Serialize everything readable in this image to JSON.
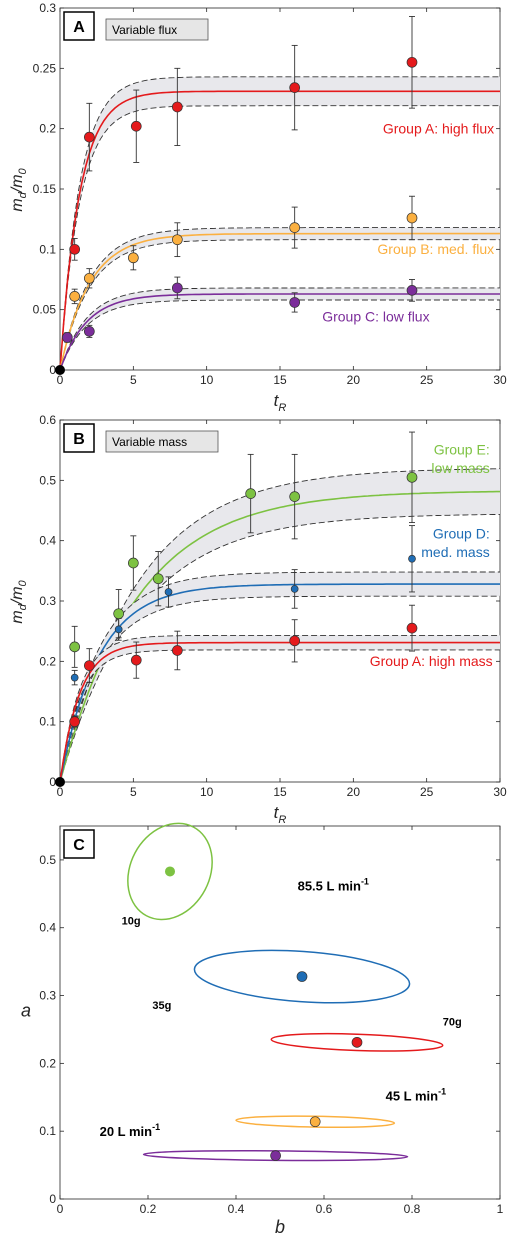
{
  "chart_data": [
    {
      "type": "line",
      "panel_label": "A",
      "title": "Variable flux",
      "xlabel_main": "t",
      "xlabel_sub": "R",
      "ylabel_main": "m",
      "ylabel_sub1": "d",
      "ylabel_mid": "/m",
      "ylabel_sub2": "0",
      "xlim": [
        0,
        30
      ],
      "ylim": [
        0,
        0.3
      ],
      "xticks": [
        0,
        5,
        10,
        15,
        20,
        25,
        30
      ],
      "xtick_labels": [
        "0",
        "5",
        "10",
        "15",
        "20",
        "25",
        "30"
      ],
      "yticks": [
        0,
        0.05,
        0.1,
        0.15,
        0.2,
        0.25,
        0.3
      ],
      "ytick_labels": [
        "0",
        "0.05",
        "0.1",
        "0.15",
        "0.2",
        "0.25",
        "0.3"
      ],
      "grid": false,
      "origin_point": [
        0,
        0
      ],
      "series": [
        {
          "name": "Group A: high flux",
          "color": "#e41a1c",
          "fit": {
            "plateau": 0.231,
            "rate": 0.75,
            "band": 0.012
          },
          "points": [
            {
              "x": 1,
              "y": 0.1,
              "err": 0.009
            },
            {
              "x": 2,
              "y": 0.193,
              "err": 0.028
            },
            {
              "x": 5.2,
              "y": 0.202,
              "err": 0.03
            },
            {
              "x": 8,
              "y": 0.218,
              "err": 0.032
            },
            {
              "x": 16,
              "y": 0.234,
              "err": 0.035
            },
            {
              "x": 24,
              "y": 0.255,
              "err": 0.038
            }
          ]
        },
        {
          "name": "Group B: med. flux",
          "color": "#fbb040",
          "fit": {
            "plateau": 0.113,
            "rate": 0.5,
            "band": 0.005
          },
          "points": [
            {
              "x": 1,
              "y": 0.061,
              "err": 0.006
            },
            {
              "x": 2,
              "y": 0.076,
              "err": 0.008
            },
            {
              "x": 5,
              "y": 0.093,
              "err": 0.01
            },
            {
              "x": 8,
              "y": 0.108,
              "err": 0.014
            },
            {
              "x": 16,
              "y": 0.118,
              "err": 0.017
            },
            {
              "x": 24,
              "y": 0.126,
              "err": 0.018
            }
          ]
        },
        {
          "name": "Group C: low flux",
          "color": "#7b2d9a",
          "fit": {
            "plateau": 0.063,
            "rate": 0.55,
            "band": 0.005
          },
          "points": [
            {
              "x": 0.5,
              "y": 0.027,
              "err": 0.004
            },
            {
              "x": 2,
              "y": 0.032,
              "err": 0.005
            },
            {
              "x": 8,
              "y": 0.068,
              "err": 0.009
            },
            {
              "x": 16,
              "y": 0.056,
              "err": 0.008
            },
            {
              "x": 24,
              "y": 0.066,
              "err": 0.009
            }
          ]
        }
      ],
      "annotations": [
        {
          "text": "Group A: high flux",
          "x": 29.6,
          "y": 0.196,
          "color": "#e41a1c"
        },
        {
          "text": "Group B: med. flux",
          "x": 29.6,
          "y": 0.096,
          "color": "#fbb040"
        },
        {
          "text": "Group C: low flux",
          "x": 25.2,
          "y": 0.04,
          "color": "#7b2d9a"
        }
      ]
    },
    {
      "type": "line",
      "panel_label": "B",
      "title": "Variable mass",
      "xlabel_main": "t",
      "xlabel_sub": "R",
      "ylabel_main": "m",
      "ylabel_sub1": "d",
      "ylabel_mid": "/m",
      "ylabel_sub2": "0",
      "xlim": [
        0,
        30
      ],
      "ylim": [
        0,
        0.6
      ],
      "xticks": [
        0,
        5,
        10,
        15,
        20,
        25,
        30
      ],
      "xtick_labels": [
        "0",
        "5",
        "10",
        "15",
        "20",
        "25",
        "30"
      ],
      "yticks": [
        0,
        0.1,
        0.2,
        0.3,
        0.4,
        0.5,
        0.6
      ],
      "ytick_labels": [
        "0",
        "0.1",
        "0.2",
        "0.3",
        "0.4",
        "0.5",
        "0.6"
      ],
      "grid": false,
      "origin_point": [
        0,
        0
      ],
      "series": [
        {
          "name": "Group E: low mass",
          "color": "#7dc242",
          "fit": {
            "plateau": 0.483,
            "rate": 0.19,
            "band": 0.038
          },
          "points": [
            {
              "x": 1,
              "y": 0.224,
              "err": 0.034
            },
            {
              "x": 4,
              "y": 0.279,
              "err": 0.04
            },
            {
              "x": 5,
              "y": 0.363,
              "err": 0.045
            },
            {
              "x": 6.7,
              "y": 0.337,
              "err": 0.045
            },
            {
              "x": 13,
              "y": 0.478,
              "err": 0.065
            },
            {
              "x": 16,
              "y": 0.473,
              "err": 0.07
            },
            {
              "x": 24,
              "y": 0.505,
              "err": 0.075
            }
          ]
        },
        {
          "name": "Group D: med. mass",
          "color": "#1f6db5",
          "fit": {
            "plateau": 0.328,
            "rate": 0.38,
            "band": 0.02
          },
          "points": [
            {
              "x": 1,
              "y": 0.173,
              "err": 0.012
            },
            {
              "x": 4,
              "y": 0.253,
              "err": 0.018
            },
            {
              "x": 7.4,
              "y": 0.315,
              "err": 0.025
            },
            {
              "x": 16,
              "y": 0.32,
              "err": 0.032
            },
            {
              "x": 24,
              "y": 0.37,
              "err": 0.055
            }
          ]
        },
        {
          "name": "Group A: high mass",
          "color": "#e41a1c",
          "fit": {
            "plateau": 0.231,
            "rate": 0.75,
            "band": 0.012
          },
          "points": [
            {
              "x": 1,
              "y": 0.1,
              "err": 0.009
            },
            {
              "x": 2,
              "y": 0.193,
              "err": 0.028
            },
            {
              "x": 5.2,
              "y": 0.202,
              "err": 0.03
            },
            {
              "x": 8,
              "y": 0.218,
              "err": 0.032
            },
            {
              "x": 16,
              "y": 0.234,
              "err": 0.035
            },
            {
              "x": 24,
              "y": 0.255,
              "err": 0.038
            }
          ]
        }
      ],
      "annotations": [
        {
          "text": "Group E:",
          "x": 29.3,
          "y": 0.543,
          "color": "#7dc242"
        },
        {
          "text": "low mass",
          "x": 29.3,
          "y": 0.512,
          "color": "#7dc242"
        },
        {
          "text": "Group D:",
          "x": 29.3,
          "y": 0.404,
          "color": "#1f6db5"
        },
        {
          "text": "med. mass",
          "x": 29.3,
          "y": 0.373,
          "color": "#1f6db5"
        },
        {
          "text": "Group A: high mass",
          "x": 29.5,
          "y": 0.192,
          "color": "#e41a1c"
        }
      ]
    },
    {
      "type": "scatter",
      "panel_label": "C",
      "xlabel": "b",
      "ylabel": "a",
      "xlim": [
        0,
        1
      ],
      "ylim": [
        0,
        0.55
      ],
      "xticks": [
        0,
        0.2,
        0.4,
        0.6,
        0.8,
        1
      ],
      "xtick_labels": [
        "0",
        "0.2",
        "0.4",
        "0.6",
        "0.8",
        "1"
      ],
      "yticks": [
        0,
        0.1,
        0.2,
        0.3,
        0.4,
        0.5
      ],
      "ytick_labels": [
        "0",
        "0.1",
        "0.2",
        "0.3",
        "0.4",
        "0.5"
      ],
      "grid": false,
      "series": [
        {
          "name": "10g",
          "color": "#7dc242",
          "b": 0.25,
          "a": 0.483,
          "ellipse": {
            "b_halfwidth": 0.09,
            "a_halfwidth": 0.074
          }
        },
        {
          "name": "35g",
          "color": "#1f6db5",
          "b": 0.55,
          "a": 0.328,
          "ellipse": {
            "b_halfwidth": 0.245,
            "a_halfwidth": 0.037
          }
        },
        {
          "name": "70g",
          "color": "#e41a1c",
          "b": 0.675,
          "a": 0.231,
          "ellipse": {
            "b_halfwidth": 0.195,
            "a_halfwidth": 0.012
          }
        },
        {
          "name": "45 L min-1",
          "color": "#fbb040",
          "b": 0.58,
          "a": 0.114,
          "ellipse": {
            "b_halfwidth": 0.18,
            "a_halfwidth": 0.008
          }
        },
        {
          "name": "20 L min-1",
          "color": "#7b2d9a",
          "b": 0.49,
          "a": 0.064,
          "ellipse": {
            "b_halfwidth": 0.3,
            "a_halfwidth": 0.007
          }
        }
      ],
      "annotations": [
        {
          "text": "10g",
          "x": 0.14,
          "y": 0.405
        },
        {
          "text": "35g",
          "x": 0.21,
          "y": 0.28
        },
        {
          "text": "70g",
          "x": 0.87,
          "y": 0.256
        },
        {
          "text": "85.5 L min",
          "sup": "-1",
          "x": 0.54,
          "y": 0.455
        },
        {
          "text": "45 L min",
          "sup": "-1",
          "x": 0.74,
          "y": 0.145
        },
        {
          "text": "20 L min",
          "sup": "-1",
          "x": 0.09,
          "y": 0.093
        }
      ]
    }
  ]
}
